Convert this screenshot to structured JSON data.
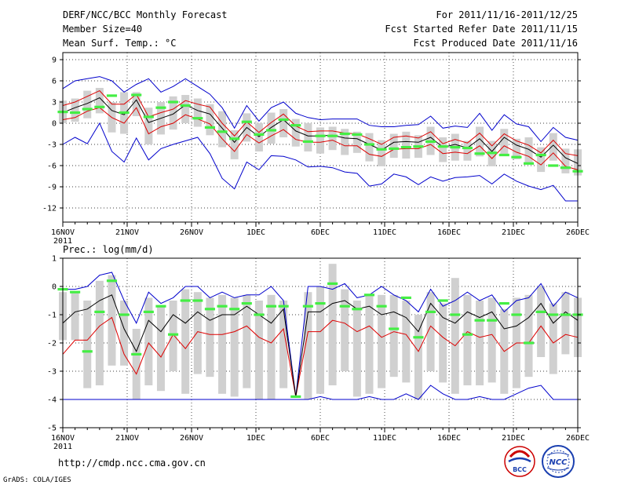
{
  "header": {
    "title": "DERF/NCC/BCC Monthly Forecast",
    "member_size": "Member Size=40",
    "variable": "Mean Surf. Temp.: °C",
    "period": "For 2011/11/16-2011/12/25",
    "fcst_started": "Fcst Started Refer Date 2011/11/15",
    "fcst_produced": "Fcst Produced Date 2011/11/16"
  },
  "footer": {
    "url": "http://cmdp.ncc.cma.gov.cn",
    "grads": "GrADS: COLA/IGES",
    "bcc_logo_text": "BCC",
    "ncc_logo_text": "NCC"
  },
  "colors": {
    "max": "#0000cc",
    "min": "#0000cc",
    "upper": "#dd0000",
    "lower": "#dd0000",
    "mean": "#000000",
    "obs": "#44ee44",
    "box": "#d0d0d0",
    "bcc": "#cc0000",
    "ncc": "#1a3fb0"
  },
  "chart_data": [
    {
      "type": "line",
      "title": "Mean Surf. Temp.: °C",
      "xlabel": "",
      "ylabel": "",
      "xlim": [
        0,
        40
      ],
      "ylim": [
        -14,
        10
      ],
      "y_ticks": [
        -12,
        -9,
        -6,
        -3,
        0,
        3,
        6,
        9
      ],
      "x_ticks": [
        {
          "x": 0,
          "label": "16NOV",
          "sub": "2011"
        },
        {
          "x": 5,
          "label": "21NOV"
        },
        {
          "x": 10,
          "label": "26NOV"
        },
        {
          "x": 15,
          "label": "1DEC"
        },
        {
          "x": 20,
          "label": "6DEC"
        },
        {
          "x": 25,
          "label": "11DEC"
        },
        {
          "x": 30,
          "label": "16DEC"
        },
        {
          "x": 35,
          "label": "21DEC"
        },
        {
          "x": 40,
          "label": "26DEC"
        }
      ],
      "grid": true,
      "series": [
        {
          "name": "max",
          "values": [
            4.9,
            6.0,
            6.3,
            6.6,
            6.0,
            4.4,
            5.5,
            6.3,
            4.4,
            5.2,
            6.3,
            5.2,
            4.1,
            2.2,
            -0.7,
            2.5,
            0.3,
            2.2,
            3.0,
            1.4,
            0.8,
            0.5,
            0.6,
            0.6,
            0.6,
            -0.3,
            -0.5,
            -0.5,
            -0.3,
            -0.2,
            1.0,
            -0.7,
            -0.4,
            -0.6,
            1.4,
            -1.0,
            1.2,
            -0.1,
            -0.5,
            -2.6,
            -0.6,
            -2.0,
            -2.4
          ]
        },
        {
          "name": "upper",
          "values": [
            2.5,
            3.0,
            3.8,
            4.6,
            2.7,
            2.7,
            4.1,
            0.9,
            1.5,
            2.0,
            3.2,
            2.7,
            2.3,
            0.0,
            -1.8,
            0.2,
            -1.3,
            0.1,
            1.3,
            -0.4,
            -1.2,
            -1.1,
            -1.1,
            -1.4,
            -1.5,
            -2.2,
            -3.0,
            -2.0,
            -1.8,
            -2.1,
            -1.2,
            -2.9,
            -2.3,
            -2.8,
            -1.4,
            -3.2,
            -1.5,
            -2.5,
            -3.1,
            -4.2,
            -2.4,
            -4.3,
            -4.6
          ]
        },
        {
          "name": "mean",
          "values": [
            1.5,
            2.2,
            2.8,
            3.6,
            1.8,
            1.2,
            3.3,
            0.1,
            0.7,
            1.3,
            2.6,
            1.8,
            1.3,
            -0.7,
            -2.7,
            -0.6,
            -1.9,
            -0.6,
            0.5,
            -1.1,
            -1.8,
            -1.8,
            -1.7,
            -2.1,
            -2.2,
            -3.0,
            -3.8,
            -2.7,
            -2.6,
            -2.7,
            -2.0,
            -3.4,
            -3.0,
            -3.5,
            -2.2,
            -4.0,
            -2.0,
            -3.1,
            -3.7,
            -4.8,
            -3.1,
            -4.9,
            -5.7
          ]
        },
        {
          "name": "lower",
          "values": [
            0.5,
            0.8,
            1.7,
            2.2,
            0.8,
            0.0,
            2.2,
            -1.5,
            -0.5,
            0.0,
            1.2,
            0.6,
            -0.1,
            -2.2,
            -4.0,
            -1.6,
            -2.8,
            -1.8,
            -0.9,
            -2.3,
            -2.7,
            -2.7,
            -2.4,
            -3.2,
            -3.2,
            -4.4,
            -4.7,
            -3.7,
            -3.6,
            -3.6,
            -3.0,
            -4.3,
            -4.1,
            -4.3,
            -3.2,
            -5.0,
            -3.2,
            -4.1,
            -4.7,
            -5.9,
            -4.2,
            -6.1,
            -6.6
          ]
        },
        {
          "name": "min",
          "values": [
            -3.0,
            -2.0,
            -2.9,
            0.0,
            -4.0,
            -5.5,
            -2.1,
            -5.2,
            -3.6,
            -3.0,
            -2.5,
            -2.0,
            -4.3,
            -7.8,
            -9.3,
            -5.5,
            -6.6,
            -4.6,
            -4.7,
            -5.2,
            -6.2,
            -6.1,
            -6.3,
            -6.9,
            -7.1,
            -8.9,
            -8.6,
            -7.2,
            -7.6,
            -8.7,
            -7.6,
            -8.2,
            -7.7,
            -7.6,
            -7.4,
            -8.6,
            -7.2,
            -8.2,
            -8.9,
            -9.4,
            -8.8,
            -11.0,
            -11.0
          ]
        },
        {
          "name": "obs",
          "values": [
            1.6,
            1.5,
            2.0,
            2.3,
            3.9,
            1.5,
            4.0,
            0.9,
            2.2,
            3.0,
            2.5,
            0.7,
            -0.6,
            -1.2,
            -2.2,
            0.2,
            -1.6,
            -1.0,
            0.5,
            -0.3,
            -2.6,
            -1.8,
            -1.8,
            -1.5,
            -1.6,
            -3.0,
            -3.7,
            -3.6,
            -3.4,
            -3.3,
            -2.6,
            -3.3,
            -3.4,
            -3.5,
            -4.3,
            -4.2,
            -4.5,
            -4.8,
            -5.7,
            -4.5,
            -6.0,
            -6.3,
            -6.8
          ]
        },
        {
          "name": "box_top",
          "values": [
            3.2,
            3.5,
            4.6,
            5.0,
            3.0,
            4.4,
            4.4,
            2.2,
            3.0,
            3.8,
            4.0,
            3.5,
            2.7,
            1.7,
            -1.0,
            1.4,
            0.0,
            1.5,
            2.0,
            0.6,
            0.0,
            -0.6,
            -0.5,
            -0.8,
            -1.2,
            -1.4,
            -2.4,
            -1.5,
            -1.2,
            -1.7,
            -0.5,
            -2.0,
            -1.5,
            -2.5,
            -0.5,
            -2.5,
            -0.8,
            -2.2,
            -2.0,
            -3.4,
            -1.4,
            -3.6,
            -3.7
          ]
        },
        {
          "name": "box_bottom",
          "values": [
            0.0,
            0.2,
            0.7,
            1.4,
            -1.3,
            -1.5,
            1.0,
            -3.0,
            -1.6,
            -0.9,
            0.0,
            -0.5,
            -1.7,
            -3.4,
            -5.1,
            -2.6,
            -4.0,
            -2.9,
            -2.0,
            -3.3,
            -4.0,
            -4.3,
            -3.8,
            -4.5,
            -4.2,
            -5.4,
            -6.1,
            -4.9,
            -5.0,
            -4.9,
            -4.5,
            -5.5,
            -5.3,
            -5.3,
            -4.7,
            -6.1,
            -4.4,
            -5.1,
            -5.8,
            -6.9,
            -5.3,
            -7.1,
            -7.4
          ]
        }
      ]
    },
    {
      "type": "line",
      "title": "Prec.: log(mm/d)",
      "xlabel": "",
      "ylabel": "",
      "xlim": [
        0,
        40
      ],
      "ylim": [
        -5,
        1
      ],
      "y_ticks": [
        -5,
        -4,
        -3,
        -2,
        -1,
        0,
        1
      ],
      "x_ticks": [
        {
          "x": 0,
          "label": "16NOV",
          "sub": "2011"
        },
        {
          "x": 5,
          "label": "21NOV"
        },
        {
          "x": 10,
          "label": "26NOV"
        },
        {
          "x": 15,
          "label": "1DEC"
        },
        {
          "x": 20,
          "label": "6DEC"
        },
        {
          "x": 25,
          "label": "11DEC"
        },
        {
          "x": 30,
          "label": "16DEC"
        },
        {
          "x": 35,
          "label": "21DEC"
        },
        {
          "x": 40,
          "label": "26DEC"
        }
      ],
      "grid": true,
      "series": [
        {
          "name": "max",
          "values": [
            -0.1,
            -0.1,
            0.0,
            0.4,
            0.5,
            -0.5,
            -1.3,
            -0.2,
            -0.6,
            -0.4,
            0.0,
            0.0,
            -0.4,
            -0.2,
            -0.4,
            -0.3,
            -0.3,
            0.0,
            -0.5,
            -3.9,
            0.0,
            0.0,
            -0.1,
            0.1,
            -0.4,
            -0.3,
            0.0,
            -0.3,
            -0.5,
            -0.9,
            -0.1,
            -0.7,
            -0.5,
            -0.2,
            -0.5,
            -0.3,
            -0.9,
            -0.5,
            -0.4,
            0.1,
            -0.7,
            -0.2,
            -0.4
          ]
        },
        {
          "name": "mean",
          "values": [
            -1.3,
            -0.9,
            -0.8,
            -0.5,
            -0.3,
            -1.5,
            -2.3,
            -1.2,
            -1.6,
            -1.0,
            -1.3,
            -0.9,
            -1.2,
            -1.0,
            -1.0,
            -0.7,
            -1.0,
            -1.3,
            -0.8,
            -3.9,
            -0.9,
            -0.9,
            -0.6,
            -0.5,
            -0.8,
            -0.7,
            -1.0,
            -0.9,
            -1.1,
            -1.6,
            -0.6,
            -1.1,
            -1.3,
            -0.9,
            -1.1,
            -0.9,
            -1.5,
            -1.4,
            -1.1,
            -0.6,
            -1.3,
            -0.9,
            -1.2
          ]
        },
        {
          "name": "lower",
          "values": [
            -2.4,
            -1.9,
            -1.9,
            -1.4,
            -1.1,
            -2.4,
            -3.1,
            -2.0,
            -2.5,
            -1.7,
            -2.2,
            -1.6,
            -1.7,
            -1.7,
            -1.6,
            -1.4,
            -1.8,
            -2.0,
            -1.5,
            -3.9,
            -1.6,
            -1.6,
            -1.2,
            -1.3,
            -1.6,
            -1.4,
            -1.8,
            -1.6,
            -1.7,
            -2.3,
            -1.4,
            -1.8,
            -2.1,
            -1.6,
            -1.8,
            -1.7,
            -2.3,
            -2.0,
            -2.0,
            -1.4,
            -2.0,
            -1.7,
            -1.8
          ]
        },
        {
          "name": "min",
          "values": [
            -4.0,
            -4.0,
            -4.0,
            -4.0,
            -4.0,
            -4.0,
            -4.0,
            -4.0,
            -4.0,
            -4.0,
            -4.0,
            -4.0,
            -4.0,
            -4.0,
            -4.0,
            -4.0,
            -4.0,
            -4.0,
            -4.0,
            -4.0,
            -4.0,
            -3.9,
            -4.0,
            -4.0,
            -4.0,
            -3.9,
            -4.0,
            -4.0,
            -3.8,
            -4.0,
            -3.5,
            -3.8,
            -4.0,
            -4.0,
            -3.9,
            -4.0,
            -4.0,
            -3.8,
            -3.6,
            -3.5,
            -4.0,
            -4.0,
            -4.0
          ]
        },
        {
          "name": "obs",
          "values": [
            -0.1,
            -0.2,
            -2.3,
            -0.9,
            0.2,
            -1.0,
            -2.4,
            -0.9,
            -0.7,
            -1.7,
            -0.5,
            -0.5,
            -0.8,
            -0.7,
            -0.8,
            -0.6,
            -1.0,
            -0.7,
            -0.7,
            -3.9,
            -0.7,
            -0.6,
            0.1,
            -0.7,
            -0.8,
            -0.3,
            -0.7,
            -1.5,
            -0.4,
            -1.8,
            -0.9,
            -0.5,
            -1.0,
            -1.7,
            -1.2,
            -1.2,
            -0.6,
            -1.0,
            -2.0,
            -0.9,
            -1.0,
            -1.0,
            -1.0
          ]
        },
        {
          "name": "box_top",
          "values": [
            -0.2,
            -0.2,
            -0.5,
            0.2,
            0.4,
            -0.5,
            -1.5,
            -0.4,
            -0.7,
            -0.5,
            -0.1,
            -0.2,
            -0.4,
            -0.3,
            -0.4,
            -0.3,
            -0.5,
            -0.3,
            -0.5,
            -3.9,
            -0.2,
            0.0,
            0.8,
            -0.1,
            -0.5,
            -0.3,
            -0.3,
            -0.3,
            -0.5,
            -1.0,
            -0.2,
            -0.6,
            0.3,
            -0.3,
            -0.5,
            -0.4,
            -0.8,
            -0.4,
            -0.3,
            0.0,
            -0.6,
            -0.2,
            -0.4
          ]
        },
        {
          "name": "box_bottom",
          "values": [
            -1.9,
            -1.9,
            -3.6,
            -3.5,
            -2.8,
            -2.8,
            -4.0,
            -3.5,
            -3.7,
            -3.0,
            -3.8,
            -3.1,
            -3.2,
            -3.8,
            -3.9,
            -3.6,
            -4.0,
            -4.0,
            -3.6,
            -3.9,
            -4.0,
            -3.8,
            -3.5,
            -3.0,
            -3.9,
            -3.8,
            -3.6,
            -3.2,
            -3.4,
            -4.0,
            -3.0,
            -3.4,
            -3.8,
            -3.5,
            -3.5,
            -3.4,
            -3.8,
            -3.6,
            -3.2,
            -2.5,
            -3.1,
            -2.4,
            -2.5
          ]
        }
      ]
    }
  ]
}
